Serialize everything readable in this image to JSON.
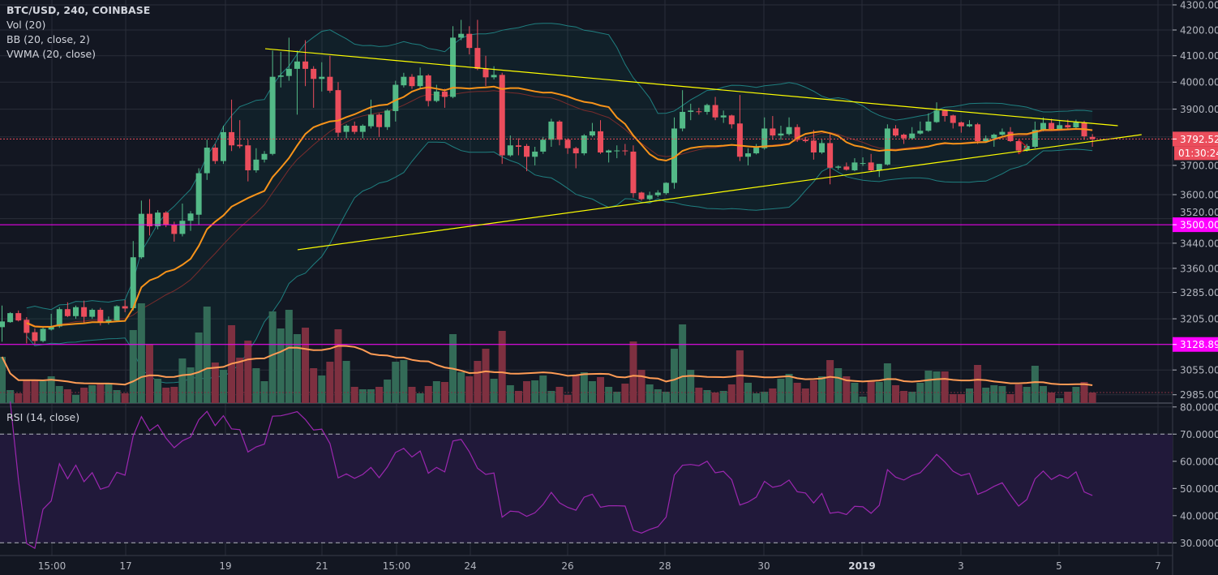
{
  "legend": {
    "title": "BTC/USD, 240, COINBASE",
    "studies": [
      "Vol (20)",
      "BB (20, close, 2)",
      "VWMA (20, close)"
    ],
    "rsi": "RSI (14, close)"
  },
  "price_axis": {
    "ticks": [
      "4300.00",
      "4200.00",
      "4100.00",
      "4000.00",
      "3900.00",
      "3700.00",
      "3600.00",
      "3520.00",
      "3440.00",
      "3360.00",
      "3285.00",
      "3205.00",
      "3055.00",
      "2985.00"
    ],
    "scale": "log"
  },
  "rsi_axis": {
    "ticks": [
      "80.0000",
      "70.0000",
      "60.0000",
      "50.0000",
      "40.0000",
      "30.0000"
    ],
    "bands": [
      70,
      30
    ]
  },
  "time_axis": {
    "ticks": [
      "15:00",
      "17",
      "19",
      "21",
      "15:00",
      "24",
      "26",
      "28",
      "30",
      "2019",
      "3",
      "5",
      "7"
    ]
  },
  "markers": {
    "last_price": "3792.52",
    "countdown": "01:30:24",
    "level_1": "3500.00",
    "level_2": "3128.89"
  },
  "colors": {
    "background": "#131722",
    "up": "#53b987",
    "down": "#eb4d5c",
    "volume_up": "#336b57",
    "volume_down": "#7e3040",
    "vwma": "#f7931a",
    "volume_ma": "#ff9c55",
    "bb_band": "#1f7f80",
    "bb_basis": "#7a2c2c",
    "rsi": "#9c27b0",
    "level": "#ff00ff",
    "trendline": "#ffff00"
  },
  "chart_data": {
    "type": "candlestick",
    "interval": "240",
    "symbol": "BTC/USD",
    "exchange": "COINBASE",
    "y_scale": "log",
    "ylim": [
      2960,
      4330
    ],
    "grid": true,
    "columns": [
      "open",
      "high",
      "low",
      "close",
      "volume"
    ],
    "candles": [
      [
        3180,
        3245,
        3137,
        3197,
        57
      ],
      [
        3195,
        3225,
        3193,
        3222,
        16
      ],
      [
        3222,
        3230,
        3197,
        3200,
        12
      ],
      [
        3202,
        3210,
        3132,
        3163,
        28
      ],
      [
        3165,
        3176,
        3130,
        3139,
        28
      ],
      [
        3139,
        3180,
        3135,
        3175,
        27
      ],
      [
        3173,
        3220,
        3170,
        3183,
        33
      ],
      [
        3182,
        3240,
        3178,
        3234,
        21
      ],
      [
        3234,
        3255,
        3210,
        3213,
        17
      ],
      [
        3213,
        3245,
        3205,
        3240,
        10
      ],
      [
        3240,
        3260,
        3192,
        3211,
        19
      ],
      [
        3211,
        3236,
        3205,
        3232,
        22
      ],
      [
        3232,
        3238,
        3185,
        3195,
        23
      ],
      [
        3195,
        3212,
        3188,
        3202,
        24
      ],
      [
        3200,
        3246,
        3196,
        3243,
        16
      ],
      [
        3243,
        3262,
        3225,
        3236,
        12
      ],
      [
        3237,
        3447,
        3230,
        3395,
        90
      ],
      [
        3395,
        3580,
        3390,
        3536,
        123
      ],
      [
        3536,
        3585,
        3465,
        3495,
        72
      ],
      [
        3495,
        3548,
        3485,
        3540,
        30
      ],
      [
        3540,
        3545,
        3492,
        3500,
        19
      ],
      [
        3500,
        3510,
        3445,
        3470,
        20
      ],
      [
        3470,
        3570,
        3462,
        3513,
        55
      ],
      [
        3513,
        3545,
        3480,
        3537,
        44
      ],
      [
        3533,
        3690,
        3500,
        3673,
        87
      ],
      [
        3673,
        3790,
        3650,
        3762,
        119
      ],
      [
        3762,
        3775,
        3705,
        3715,
        50
      ],
      [
        3715,
        3840,
        3705,
        3817,
        41
      ],
      [
        3817,
        3935,
        3750,
        3770,
        96
      ],
      [
        3772,
        3860,
        3760,
        3767,
        56
      ],
      [
        3770,
        3790,
        3645,
        3683,
        77
      ],
      [
        3683,
        3760,
        3675,
        3720,
        43
      ],
      [
        3720,
        3750,
        3710,
        3740,
        27
      ],
      [
        3740,
        4120,
        3735,
        4020,
        113
      ],
      [
        4020,
        4115,
        3980,
        4025,
        92
      ],
      [
        4023,
        4170,
        4005,
        4050,
        115
      ],
      [
        4050,
        4120,
        3880,
        4078,
        85
      ],
      [
        4078,
        4160,
        3985,
        4050,
        93
      ],
      [
        4050,
        4060,
        3905,
        4012,
        43
      ],
      [
        4012,
        4075,
        3965,
        4020,
        34
      ],
      [
        4020,
        4100,
        3960,
        3968,
        51
      ],
      [
        3970,
        4000,
        3800,
        3815,
        91
      ],
      [
        3818,
        3845,
        3795,
        3840,
        52
      ],
      [
        3840,
        3855,
        3810,
        3818,
        20
      ],
      [
        3818,
        3845,
        3795,
        3840,
        17
      ],
      [
        3838,
        3935,
        3830,
        3880,
        17
      ],
      [
        3880,
        3885,
        3800,
        3835,
        20
      ],
      [
        3835,
        3900,
        3825,
        3895,
        29
      ],
      [
        3893,
        4005,
        3855,
        3990,
        51
      ],
      [
        3988,
        4035,
        3980,
        4020,
        53
      ],
      [
        4020,
        4030,
        3975,
        3985,
        20
      ],
      [
        3985,
        4055,
        3978,
        4025,
        12
      ],
      [
        4025,
        4030,
        3910,
        3930,
        21
      ],
      [
        3930,
        3990,
        3925,
        3965,
        27
      ],
      [
        3965,
        3975,
        3905,
        3945,
        26
      ],
      [
        3945,
        4215,
        3940,
        4170,
        85
      ],
      [
        4170,
        4240,
        4160,
        4185,
        38
      ],
      [
        4185,
        4215,
        4105,
        4130,
        33
      ],
      [
        4130,
        4240,
        4045,
        4050,
        52
      ],
      [
        4052,
        4100,
        3985,
        4018,
        67
      ],
      [
        4018,
        4060,
        4010,
        4027,
        30
      ],
      [
        4027,
        4035,
        3705,
        3735,
        89
      ],
      [
        3735,
        3805,
        3730,
        3770,
        22
      ],
      [
        3770,
        3795,
        3735,
        3765,
        15
      ],
      [
        3768,
        3775,
        3680,
        3730,
        27
      ],
      [
        3730,
        3765,
        3700,
        3748,
        28
      ],
      [
        3748,
        3800,
        3740,
        3790,
        34
      ],
      [
        3790,
        3865,
        3765,
        3855,
        15
      ],
      [
        3855,
        3860,
        3770,
        3790,
        20
      ],
      [
        3790,
        3795,
        3740,
        3760,
        10
      ],
      [
        3760,
        3765,
        3690,
        3742,
        34
      ],
      [
        3742,
        3810,
        3735,
        3805,
        38
      ],
      [
        3805,
        3850,
        3800,
        3820,
        27
      ],
      [
        3820,
        3860,
        3740,
        3745,
        32
      ],
      [
        3745,
        3755,
        3710,
        3752,
        20
      ],
      [
        3750,
        3770,
        3725,
        3752,
        14
      ],
      [
        3752,
        3775,
        3735,
        3750,
        24
      ],
      [
        3748,
        3770,
        3590,
        3605,
        76
      ],
      [
        3607,
        3610,
        3580,
        3585,
        41
      ],
      [
        3585,
        3610,
        3580,
        3598,
        23
      ],
      [
        3598,
        3615,
        3592,
        3607,
        17
      ],
      [
        3605,
        3642,
        3600,
        3640,
        14
      ],
      [
        3640,
        3870,
        3620,
        3830,
        67
      ],
      [
        3830,
        3970,
        3820,
        3890,
        97
      ],
      [
        3890,
        3920,
        3860,
        3895,
        41
      ],
      [
        3892,
        3905,
        3880,
        3890,
        19
      ],
      [
        3890,
        3920,
        3880,
        3915,
        16
      ],
      [
        3915,
        3945,
        3860,
        3870,
        13
      ],
      [
        3870,
        3895,
        3850,
        3877,
        15
      ],
      [
        3877,
        3880,
        3830,
        3845,
        23
      ],
      [
        3848,
        3952,
        3715,
        3730,
        65
      ],
      [
        3730,
        3760,
        3700,
        3742,
        25
      ],
      [
        3742,
        3775,
        3738,
        3762,
        12
      ],
      [
        3760,
        3870,
        3755,
        3830,
        14
      ],
      [
        3830,
        3875,
        3790,
        3805,
        18
      ],
      [
        3805,
        3840,
        3790,
        3812,
        30
      ],
      [
        3810,
        3870,
        3805,
        3835,
        36
      ],
      [
        3835,
        3845,
        3782,
        3790,
        25
      ],
      [
        3790,
        3800,
        3780,
        3785,
        18
      ],
      [
        3787,
        3825,
        3720,
        3745,
        28
      ],
      [
        3745,
        3790,
        3740,
        3778,
        33
      ],
      [
        3778,
        3810,
        3635,
        3692,
        53
      ],
      [
        3692,
        3700,
        3685,
        3696,
        43
      ],
      [
        3696,
        3710,
        3682,
        3685,
        33
      ],
      [
        3683,
        3725,
        3680,
        3710,
        25
      ],
      [
        3708,
        3728,
        3698,
        3708,
        8
      ],
      [
        3710,
        3740,
        3680,
        3683,
        27
      ],
      [
        3683,
        3705,
        3660,
        3705,
        26
      ],
      [
        3703,
        3845,
        3700,
        3830,
        49
      ],
      [
        3830,
        3842,
        3800,
        3805,
        22
      ],
      [
        3808,
        3812,
        3775,
        3795,
        15
      ],
      [
        3795,
        3835,
        3790,
        3812,
        14
      ],
      [
        3812,
        3855,
        3808,
        3822,
        25
      ],
      [
        3822,
        3885,
        3818,
        3855,
        40
      ],
      [
        3853,
        3925,
        3850,
        3895,
        39
      ],
      [
        3895,
        3898,
        3855,
        3875,
        39
      ],
      [
        3877,
        3880,
        3830,
        3850,
        11
      ],
      [
        3852,
        3855,
        3815,
        3838,
        11
      ],
      [
        3838,
        3860,
        3835,
        3845,
        18
      ],
      [
        3845,
        3850,
        3775,
        3785,
        47
      ],
      [
        3785,
        3805,
        3780,
        3795,
        19
      ],
      [
        3795,
        3812,
        3765,
        3808,
        22
      ],
      [
        3808,
        3830,
        3804,
        3818,
        21
      ],
      [
        3818,
        3835,
        3782,
        3785,
        11
      ],
      [
        3785,
        3790,
        3740,
        3752,
        23
      ],
      [
        3752,
        3775,
        3748,
        3768,
        20
      ],
      [
        3765,
        3855,
        3760,
        3825,
        46
      ],
      [
        3825,
        3870,
        3820,
        3850,
        21
      ],
      [
        3850,
        3865,
        3825,
        3828,
        13
      ],
      [
        3828,
        3860,
        3825,
        3842,
        6
      ],
      [
        3842,
        3862,
        3830,
        3834,
        14
      ],
      [
        3834,
        3862,
        3830,
        3852,
        20
      ],
      [
        3852,
        3858,
        3790,
        3802,
        26
      ],
      [
        3800,
        3810,
        3765,
        3792.52,
        13
      ]
    ],
    "horizontal_levels": [
      3500.0,
      3128.89
    ],
    "trendlines": [
      {
        "from": {
          "bar": 32.1,
          "price": 4127
        },
        "to": {
          "bar": 136.1,
          "price": 3840
        }
      },
      {
        "from": {
          "bar": 36.05,
          "price": 3419
        },
        "to": {
          "bar": 139.0,
          "price": 3808
        }
      }
    ],
    "indicators": {
      "bb_length": 20,
      "bb_mult": 2,
      "vwma_length": 20,
      "volume_ma_length": 20,
      "rsi_length": 14
    }
  }
}
